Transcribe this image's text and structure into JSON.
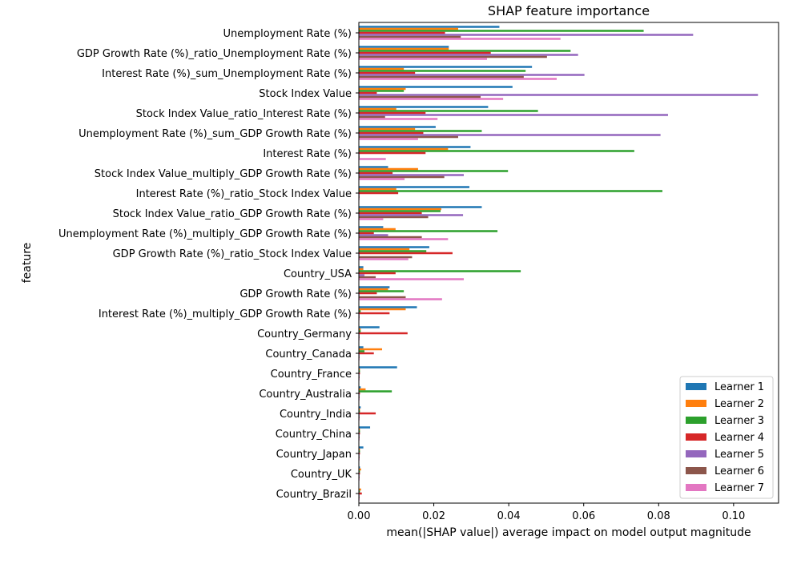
{
  "chart_data": {
    "type": "bar",
    "orientation": "horizontal",
    "title": "SHAP feature importance",
    "xlabel": "mean(|SHAP value|) average impact on model output magnitude",
    "ylabel": "feature",
    "xlim": [
      0.0,
      0.112
    ],
    "xticks": [
      0.0,
      0.02,
      0.04,
      0.06,
      0.08,
      0.1
    ],
    "xtick_labels": [
      "0.00",
      "0.02",
      "0.04",
      "0.06",
      "0.08",
      "0.10"
    ],
    "grid": false,
    "legend_position": "bottom-right",
    "categories": [
      "Unemployment Rate (%)",
      "GDP Growth Rate (%)_ratio_Unemployment Rate (%)",
      "Interest Rate (%)_sum_Unemployment Rate (%)",
      "Stock Index Value",
      "Stock Index Value_ratio_Interest Rate (%)",
      "Unemployment Rate (%)_sum_GDP Growth Rate (%)",
      "Interest Rate (%)",
      "Stock Index Value_multiply_GDP Growth Rate (%)",
      "Interest Rate (%)_ratio_Stock Index Value",
      "Stock Index Value_ratio_GDP Growth Rate (%)",
      "Unemployment Rate (%)_multiply_GDP Growth Rate (%)",
      "GDP Growth Rate (%)_ratio_Stock Index Value",
      "Country_USA",
      "GDP Growth Rate (%)",
      "Interest Rate (%)_multiply_GDP Growth Rate (%)",
      "Country_Germany",
      "Country_Canada",
      "Country_France",
      "Country_Australia",
      "Country_India",
      "Country_China",
      "Country_Japan",
      "Country_UK",
      "Country_Brazil"
    ],
    "series": [
      {
        "name": "Learner 1",
        "color": "#1f77b4",
        "values": [
          0.0375,
          0.024,
          0.0462,
          0.041,
          0.0345,
          0.0205,
          0.0298,
          0.0078,
          0.0295,
          0.0328,
          0.0065,
          0.0188,
          0.0012,
          0.0082,
          0.0155,
          0.0055,
          0.0012,
          0.0102,
          0.0005,
          0.0005,
          0.003,
          0.0012,
          0.0003,
          0.0
        ]
      },
      {
        "name": "Learner 2",
        "color": "#ff7f0e",
        "values": [
          0.0265,
          0.024,
          0.012,
          0.0125,
          0.01,
          0.015,
          0.0238,
          0.0158,
          0.01,
          0.022,
          0.0098,
          0.0135,
          0.0012,
          0.0078,
          0.0125,
          0.0005,
          0.0062,
          0.0003,
          0.0018,
          0.0003,
          0.0003,
          0.0003,
          0.0006,
          0.0006
        ]
      },
      {
        "name": "Learner 3",
        "color": "#2ca02c",
        "values": [
          0.076,
          0.0565,
          0.0445,
          0.012,
          0.0478,
          0.0328,
          0.0735,
          0.0398,
          0.081,
          0.0218,
          0.037,
          0.018,
          0.0432,
          0.012,
          0.0005,
          0.0005,
          0.0015,
          0.0003,
          0.0088,
          0.0003,
          0.0003,
          0.0003,
          0.0003,
          0.0003
        ]
      },
      {
        "name": "Learner 4",
        "color": "#d62728",
        "values": [
          0.023,
          0.0352,
          0.015,
          0.0048,
          0.0178,
          0.0172,
          0.0178,
          0.009,
          0.0105,
          0.0168,
          0.004,
          0.025,
          0.0098,
          0.0048,
          0.0082,
          0.013,
          0.004,
          0.0003,
          0.0003,
          0.0045,
          0.0003,
          0.0003,
          0.0003,
          0.0008
        ]
      },
      {
        "name": "Learner 5",
        "color": "#9467bd",
        "values": [
          0.0892,
          0.0585,
          0.0602,
          0.1065,
          0.0825,
          0.0805,
          0.0002,
          0.028,
          0.0002,
          0.0278,
          0.0078,
          0.0002,
          0.0015,
          0.0002,
          0.0002,
          0.0002,
          0.0002,
          0.0002,
          0.0002,
          0.0002,
          0.0002,
          0.0002,
          0.0002,
          0.0002
        ]
      },
      {
        "name": "Learner 6",
        "color": "#8c564b",
        "values": [
          0.0272,
          0.0502,
          0.044,
          0.0325,
          0.007,
          0.0265,
          0.0002,
          0.0228,
          0.0002,
          0.0185,
          0.0168,
          0.0142,
          0.0045,
          0.0125,
          0.0002,
          0.0002,
          0.0002,
          0.0002,
          0.0002,
          0.0002,
          0.0002,
          0.0002,
          0.0002,
          0.0002
        ]
      },
      {
        "name": "Learner 7",
        "color": "#e377c2",
        "values": [
          0.0538,
          0.0342,
          0.0528,
          0.0385,
          0.021,
          0.0158,
          0.0072,
          0.0122,
          0.0002,
          0.0065,
          0.0238,
          0.0132,
          0.028,
          0.0222,
          0.0002,
          0.0002,
          0.0002,
          0.0002,
          0.0002,
          0.0002,
          0.0002,
          0.0002,
          0.0002,
          0.0002
        ]
      }
    ]
  }
}
